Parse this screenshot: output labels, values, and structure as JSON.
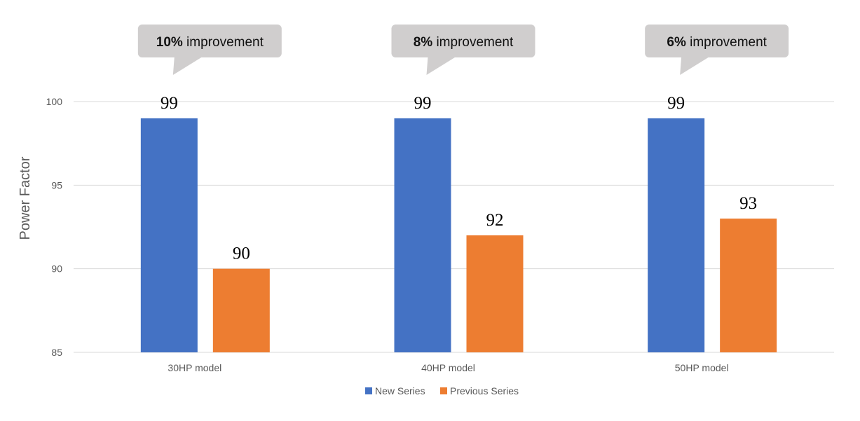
{
  "chart_data": {
    "type": "bar",
    "categories": [
      "30HP model",
      "40HP model",
      "50HP model"
    ],
    "series": [
      {
        "name": "New Series",
        "values": [
          99,
          99,
          99
        ],
        "color": "#4472C4"
      },
      {
        "name": "Previous Series",
        "values": [
          90,
          92,
          93
        ],
        "color": "#ED7D31"
      }
    ],
    "xlabel": "",
    "ylabel": "Power Factor",
    "ylim": [
      85,
      100
    ],
    "yticks": [
      85,
      90,
      95,
      100
    ],
    "grid": true,
    "legend": "bottom",
    "annotations": [
      {
        "pct": "10%",
        "text": "improvement",
        "category": "30HP model"
      },
      {
        "pct": "8%",
        "text": "improvement",
        "category": "40HP model"
      },
      {
        "pct": "6%",
        "text": "improvement",
        "category": "50HP model"
      }
    ],
    "gridline_color": "#D9D9D9",
    "callout_color": "#D0CECE"
  }
}
